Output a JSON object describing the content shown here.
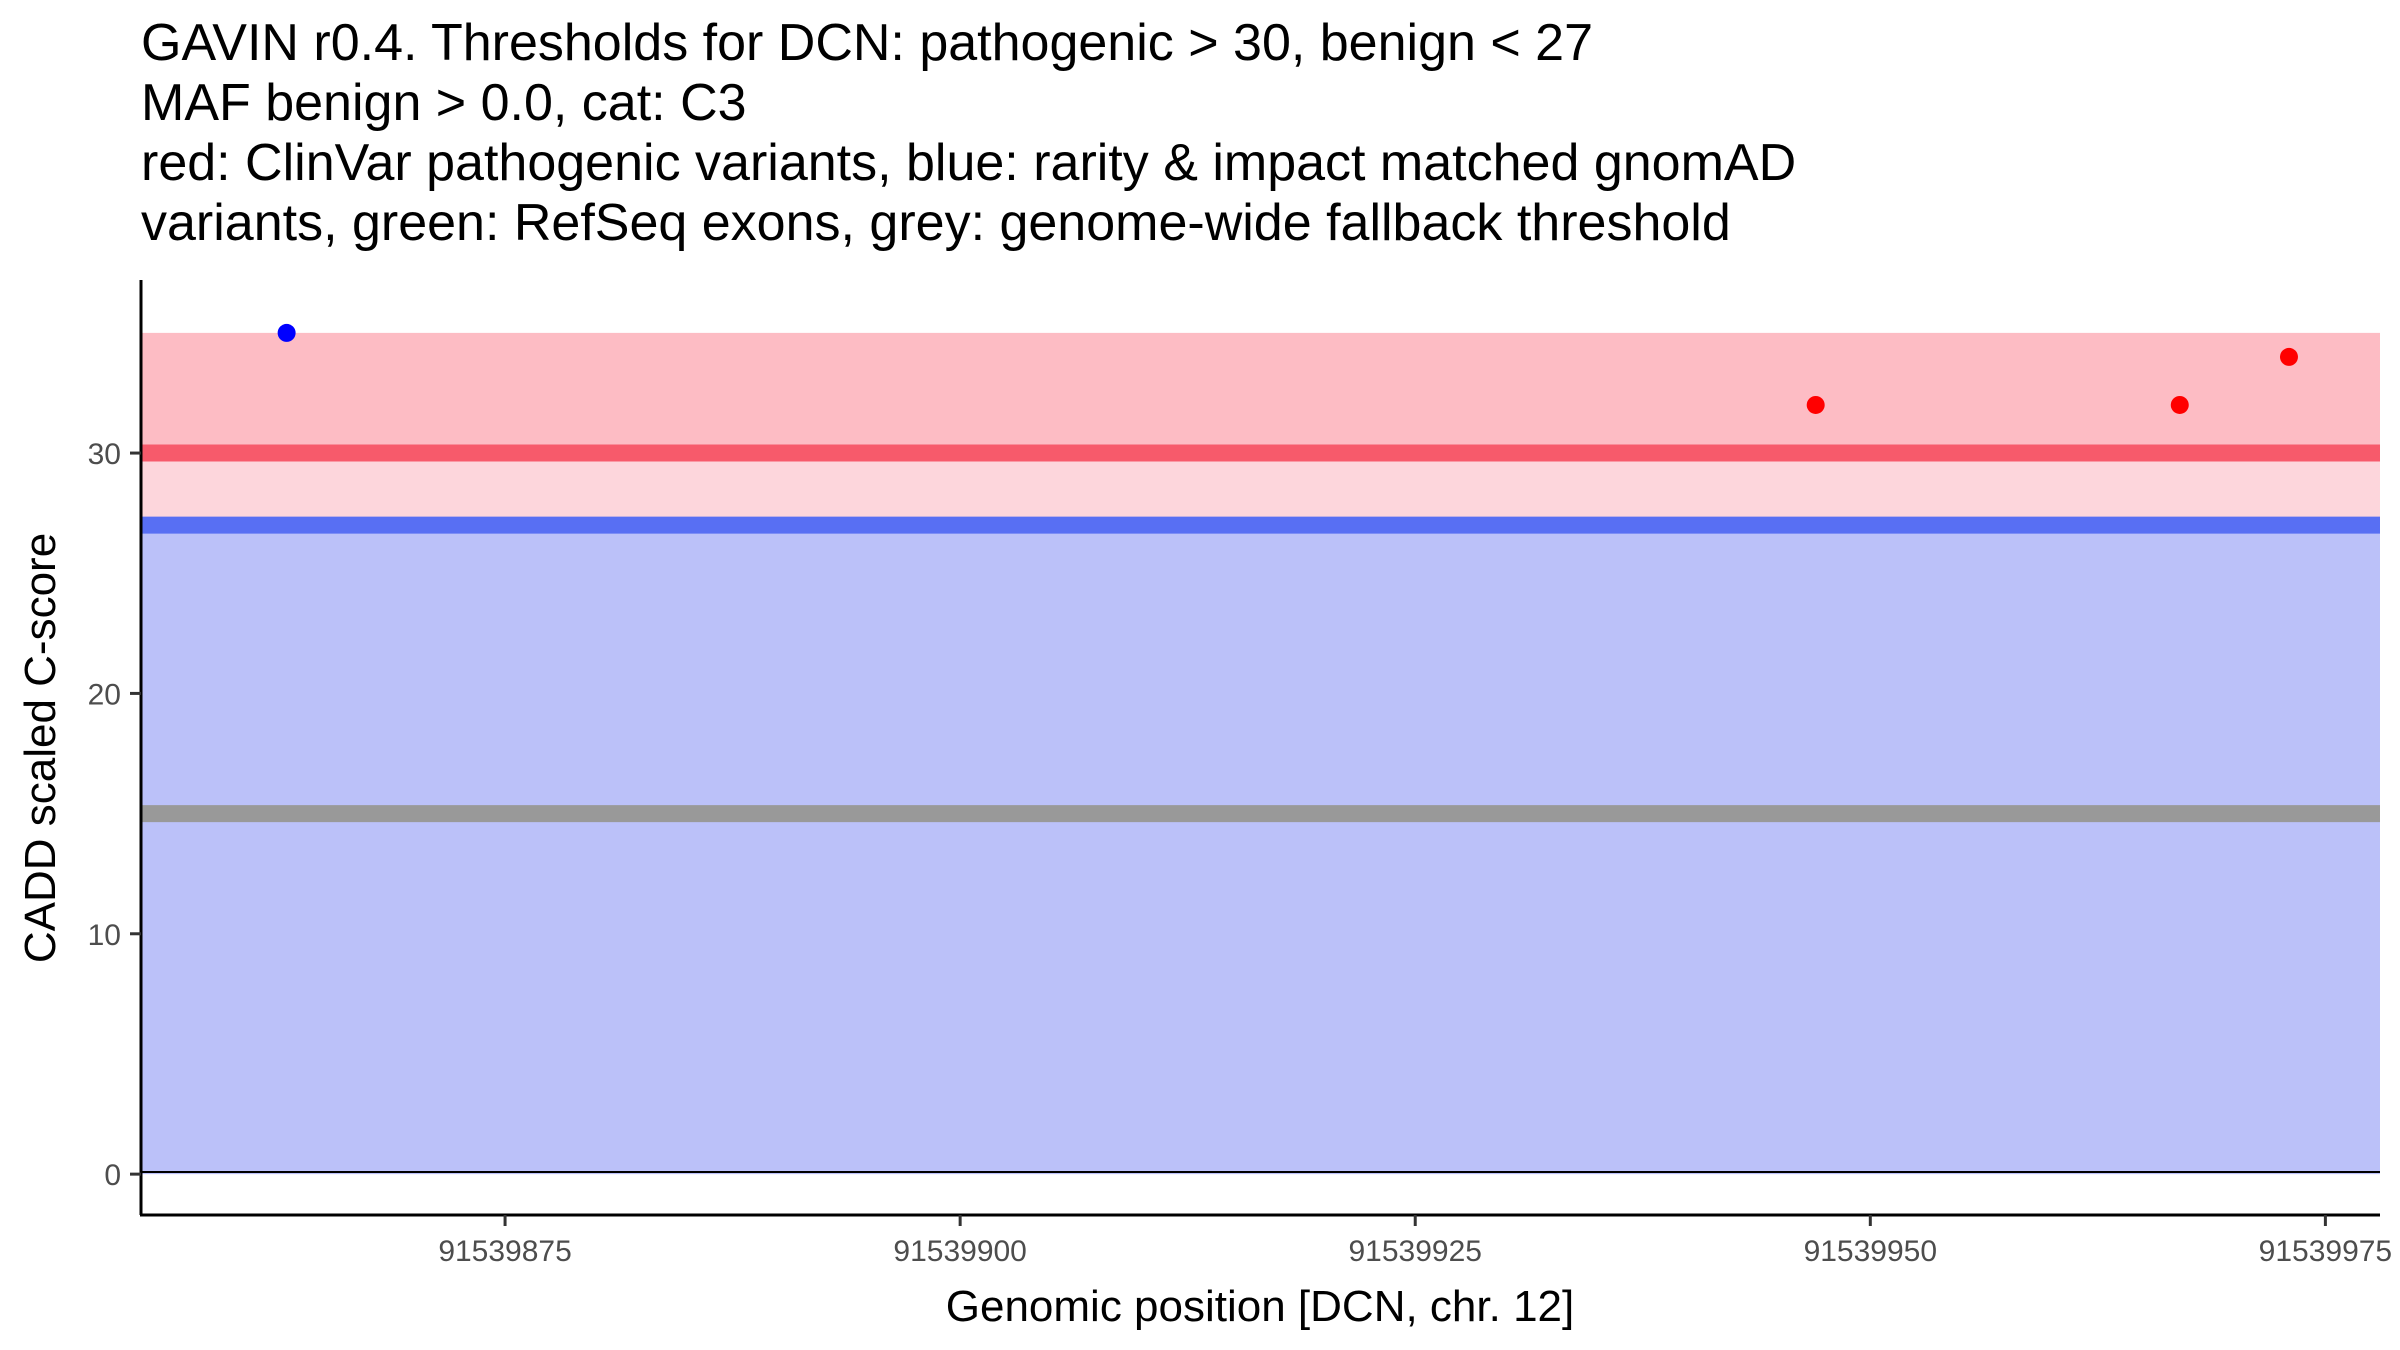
{
  "chart_data": {
    "type": "scatter",
    "title_lines": [
      "GAVIN r0.4. Thresholds for DCN: pathogenic > 30, benign < 27",
      "MAF benign > 0.0, cat: C3",
      "red: ClinVar pathogenic variants, blue: rarity & impact matched gnomAD",
      "variants, green: RefSeq exons, grey: genome-wide fallback threshold"
    ],
    "xlabel": "Genomic position [DCN, chr. 12]",
    "ylabel": "CADD scaled C-score",
    "xlim": [
      91539855,
      91539978
    ],
    "ylim": [
      -1.7,
      37.2
    ],
    "xticks": [
      91539875,
      91539900,
      91539925,
      91539950,
      91539975
    ],
    "yticks": [
      0,
      10,
      20,
      30
    ],
    "bands": [
      {
        "name": "pathogenic-dark-band",
        "y0": 30,
        "y1": 35,
        "color": "#fdbcc4"
      },
      {
        "name": "pathogenic-light-band",
        "y0": 27,
        "y1": 30,
        "color": "#fdd6dc"
      },
      {
        "name": "benign-band",
        "y0": 0,
        "y1": 27,
        "color": "#bbc1f9"
      }
    ],
    "thresholds": [
      {
        "name": "pathogenic-threshold-line",
        "y": 30,
        "color": "#f75a6b"
      },
      {
        "name": "benign-threshold-line",
        "y": 27,
        "color": "#586ff3"
      },
      {
        "name": "genome-wide-fallback-threshold-line",
        "y": 15,
        "color": "#999999"
      }
    ],
    "series": [
      {
        "name": "ClinVar pathogenic variants",
        "color": "#ff0000",
        "points": [
          {
            "x": 91539947,
            "y": 32
          },
          {
            "x": 91539967,
            "y": 32
          },
          {
            "x": 91539973,
            "y": 34
          }
        ]
      },
      {
        "name": "gnomAD matched variants",
        "color": "#0000ff",
        "points": [
          {
            "x": 91539863,
            "y": 35
          }
        ]
      }
    ]
  }
}
